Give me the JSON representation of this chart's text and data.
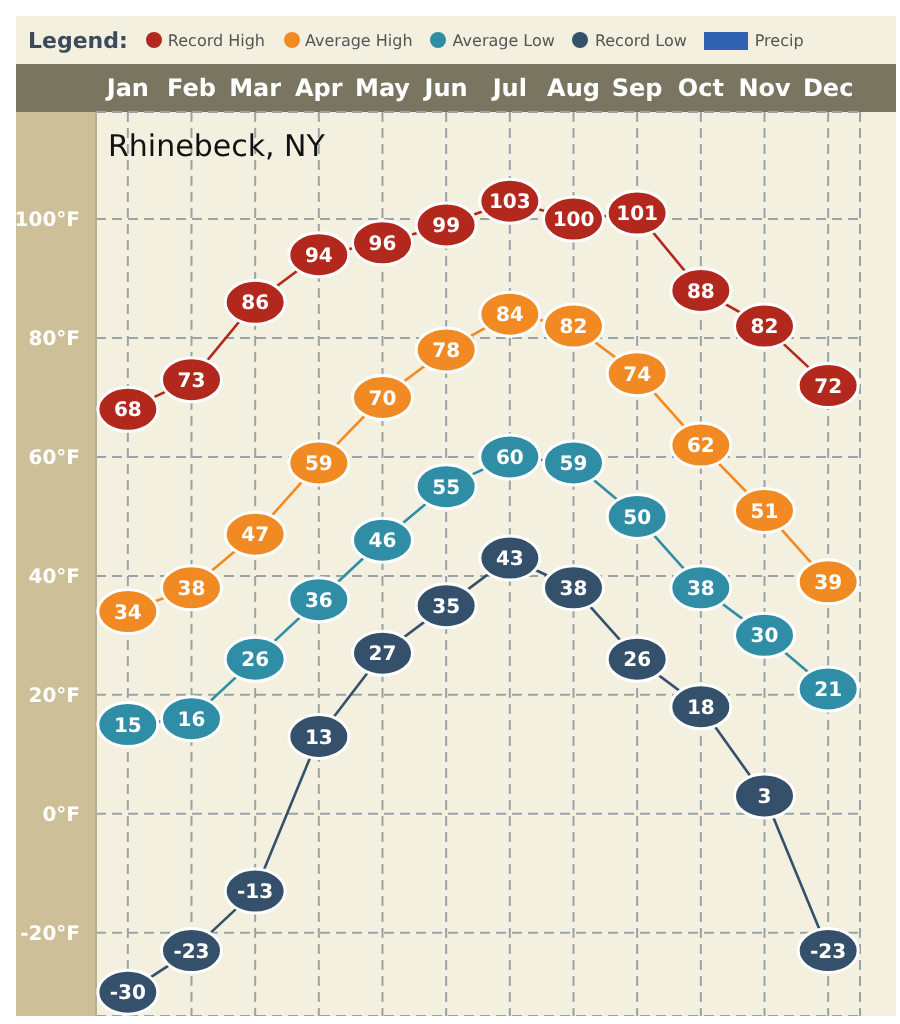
{
  "chart_data": {
    "type": "line",
    "title": "Rhinebeck, NY",
    "legend_title": "Legend:",
    "categories": [
      "Jan",
      "Feb",
      "Mar",
      "Apr",
      "May",
      "Jun",
      "Jul",
      "Aug",
      "Sep",
      "Oct",
      "Nov",
      "Dec"
    ],
    "series": [
      {
        "name": "Record High",
        "color": "#b3281d",
        "values": [
          68,
          73,
          86,
          94,
          96,
          99,
          103,
          100,
          101,
          88,
          82,
          72
        ]
      },
      {
        "name": "Average High",
        "color": "#f28a24",
        "values": [
          34,
          38,
          47,
          59,
          70,
          78,
          84,
          82,
          74,
          62,
          51,
          39
        ]
      },
      {
        "name": "Average Low",
        "color": "#2f8ea6",
        "values": [
          15,
          16,
          26,
          36,
          46,
          55,
          60,
          59,
          50,
          38,
          30,
          21
        ]
      },
      {
        "name": "Record Low",
        "color": "#34506b",
        "values": [
          -30,
          -23,
          -13,
          13,
          27,
          35,
          43,
          38,
          26,
          18,
          3,
          -23
        ]
      },
      {
        "name": "Precip",
        "type": "bar",
        "color": "#2f62b0",
        "values": [
          null,
          null,
          null,
          null,
          null,
          null,
          null,
          null,
          null,
          null,
          null,
          null
        ]
      }
    ],
    "ylim": [
      -34,
      118
    ],
    "yticks": [
      {
        "value": -20,
        "label": "-20°F"
      },
      {
        "value": 0,
        "label": "0°F"
      },
      {
        "value": 20,
        "label": "20°F"
      },
      {
        "value": 40,
        "label": "40°F"
      },
      {
        "value": 60,
        "label": "60°F"
      },
      {
        "value": 80,
        "label": "80°F"
      },
      {
        "value": 100,
        "label": "100°F"
      }
    ],
    "grid": true,
    "legend": "top",
    "marker": "circle",
    "data_labels": true
  }
}
